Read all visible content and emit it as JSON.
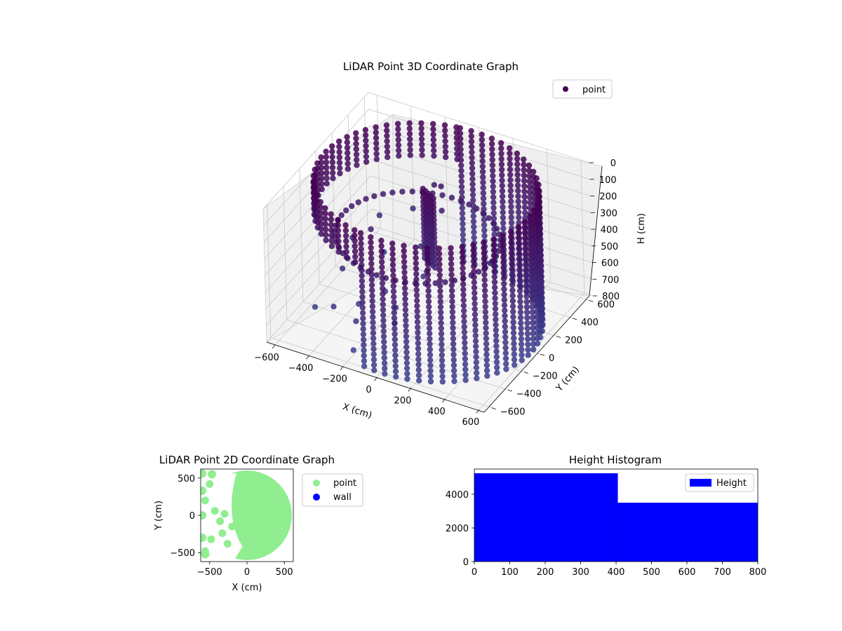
{
  "chart_data": [
    {
      "type": "scatter",
      "subtype": "3d",
      "title": "LiDAR Point 3D Coordinate Graph",
      "xlabel": "X (cm)",
      "ylabel": "Y (cm)",
      "zlabel": "H (cm)",
      "xlim": [
        -650,
        650
      ],
      "ylim": [
        -650,
        650
      ],
      "zlim": [
        0,
        800
      ],
      "z_inverted": true,
      "x_ticks": [
        "−600",
        "−400",
        "−200",
        "0",
        "200",
        "400",
        "600"
      ],
      "y_ticks": [
        "−600",
        "−400",
        "−200",
        "0",
        "200",
        "400",
        "600"
      ],
      "z_ticks": [
        "0",
        "100",
        "200",
        "300",
        "400",
        "500",
        "600",
        "700",
        "800"
      ],
      "legend": [
        "point"
      ],
      "legend_position": "top-right",
      "grid": true,
      "colormap": "viridis",
      "marker_color": "#440154",
      "series": [
        {
          "name": "point",
          "description_shape": "cylindrical wall of radius ~600 cm around the origin, opening toward -X, plus scattered interior points",
          "wall_radius": 600,
          "wall_open_angle_start_deg": 100,
          "wall_open_angle_end_deg": 260,
          "full_height_angle_start_deg": -100,
          "full_height_angle_end_deg": 100,
          "scattered_points": [
            {
              "x": -520,
              "y": 150,
              "h": 560
            },
            {
              "x": -480,
              "y": -60,
              "h": 620
            },
            {
              "x": -420,
              "y": -300,
              "h": 700
            },
            {
              "x": -380,
              "y": 240,
              "h": 650
            },
            {
              "x": -330,
              "y": -180,
              "h": 720
            },
            {
              "x": -290,
              "y": 60,
              "h": 760
            },
            {
              "x": -250,
              "y": -380,
              "h": 690
            },
            {
              "x": -200,
              "y": 320,
              "h": 600
            },
            {
              "x": -160,
              "y": -80,
              "h": 740
            },
            {
              "x": -120,
              "y": 180,
              "h": 680
            },
            {
              "x": -80,
              "y": -260,
              "h": 710
            },
            {
              "x": -40,
              "y": 60,
              "h": 560
            },
            {
              "x": -560,
              "y": -240,
              "h": 780
            },
            {
              "x": -460,
              "y": 360,
              "h": 520
            },
            {
              "x": -300,
              "y": 440,
              "h": 470
            },
            {
              "x": -220,
              "y": -480,
              "h": 800
            },
            {
              "x": -350,
              "y": 30,
              "h": 390
            },
            {
              "x": -180,
              "y": 460,
              "h": 300
            },
            {
              "x": -100,
              "y": 380,
              "h": 240
            },
            {
              "x": -60,
              "y": 300,
              "h": 330
            }
          ]
        }
      ]
    },
    {
      "type": "scatter",
      "title": "LiDAR Point 2D Coordinate Graph",
      "xlabel": "X (cm)",
      "ylabel": "Y (cm)",
      "xlim": [
        -620,
        620
      ],
      "ylim": [
        -620,
        620
      ],
      "x_ticks": [
        "−500",
        "0",
        "500"
      ],
      "y_ticks": [
        "−500",
        "0",
        "500"
      ],
      "legend": [
        "point",
        "wall"
      ],
      "legend_position": "right-outside",
      "colors": {
        "point": "#90ee90",
        "wall": "#0000ff"
      },
      "series": [
        {
          "name": "point",
          "description_shape": "filled disk of radius ~600 cm with a concave gap on the -X side",
          "disk_radius": 600,
          "holes": [
            {
              "x": -380,
              "y": 350
            },
            {
              "x": -300,
              "y": 150
            },
            {
              "x": -430,
              "y": -40
            },
            {
              "x": -270,
              "y": -300
            },
            {
              "x": -380,
              "y": -440
            },
            {
              "x": -200,
              "y": 470
            }
          ],
          "blobs": [
            {
              "x": -500,
              "y": 420
            },
            {
              "x": -560,
              "y": 200
            },
            {
              "x": -430,
              "y": 60
            },
            {
              "x": -360,
              "y": -80
            },
            {
              "x": -300,
              "y": 20
            },
            {
              "x": -480,
              "y": -320
            },
            {
              "x": -560,
              "y": -480
            },
            {
              "x": -260,
              "y": -380
            },
            {
              "x": -200,
              "y": -150
            },
            {
              "x": -330,
              "y": -240
            }
          ]
        },
        {
          "name": "wall",
          "values": []
        }
      ]
    },
    {
      "type": "histogram",
      "title": "Height Histogram",
      "xlim": [
        0,
        800
      ],
      "ylim": [
        0,
        5500
      ],
      "x_ticks": [
        "0",
        "100",
        "200",
        "300",
        "400",
        "500",
        "600",
        "700",
        "800"
      ],
      "y_ticks": [
        "0",
        "2000",
        "4000"
      ],
      "legend": [
        "Height"
      ],
      "legend_position": "top-right",
      "bar_color": "#0000ff",
      "bins": [
        {
          "start": 0,
          "end": 405,
          "count": 5250
        },
        {
          "start": 405,
          "end": 800,
          "count": 3500
        }
      ]
    }
  ]
}
